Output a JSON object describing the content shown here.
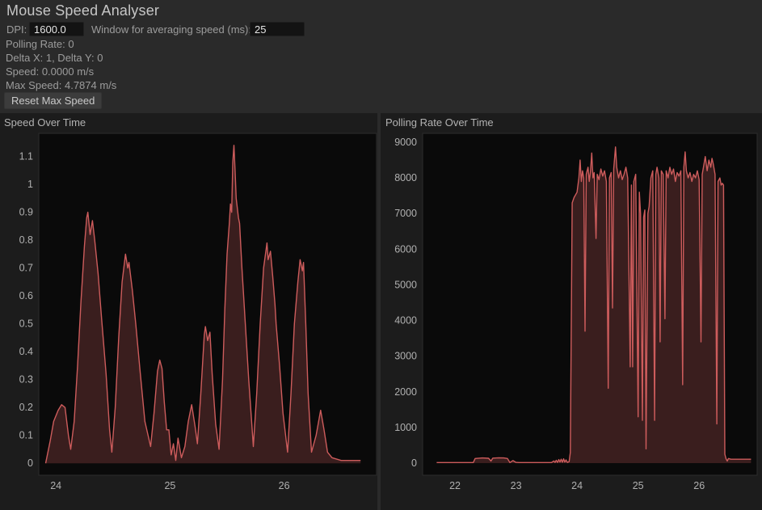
{
  "header": {
    "title": "Mouse Speed Analyser",
    "dpi_label": "DPI:",
    "dpi_value": "1600.0",
    "window_label": "Window for averaging speed (ms):",
    "window_value": "25",
    "polling_rate": "Polling Rate: 0",
    "delta": "Delta X: 1, Delta Y: 0",
    "speed": "Speed: 0.0000 m/s",
    "max_speed": "Max Speed: 4.7874 m/s",
    "reset_button": "Reset Max Speed"
  },
  "colors": {
    "page_bg": "#2a2a2a",
    "panel_bg": "#1c1c1c",
    "plot_bg": "#0a0a0a",
    "plot_border": "#2d2d2d",
    "line": "#cd5c5c",
    "fill": "rgba(205,92,92,0.25)",
    "tick_text": "#b0b0b0"
  },
  "chart_data": [
    {
      "type": "area",
      "title": "Speed Over Time",
      "xlabel": "",
      "ylabel": "",
      "grid": false,
      "legend": "none",
      "xlim": [
        23.85,
        26.81
      ],
      "ylim": [
        -0.043,
        1.183
      ],
      "xticks": [
        24,
        25,
        26
      ],
      "xtick_labels": [
        "24",
        "25",
        "26"
      ],
      "yticks": [
        0,
        0.1,
        0.2,
        0.3,
        0.4,
        0.5,
        0.6,
        0.7,
        0.8,
        0.9,
        1,
        1.1
      ],
      "ytick_labels": [
        "0",
        "0.1",
        "0.2",
        "0.3",
        "0.4",
        "0.5",
        "0.6",
        "0.7",
        "0.8",
        "0.9",
        "1",
        "1.1"
      ],
      "points": [
        [
          23.91,
          0.0
        ],
        [
          23.95,
          0.08
        ],
        [
          23.98,
          0.15
        ],
        [
          24.02,
          0.19
        ],
        [
          24.05,
          0.21
        ],
        [
          24.08,
          0.2
        ],
        [
          24.11,
          0.1
        ],
        [
          24.13,
          0.05
        ],
        [
          24.16,
          0.15
        ],
        [
          24.19,
          0.35
        ],
        [
          24.22,
          0.58
        ],
        [
          24.25,
          0.78
        ],
        [
          24.27,
          0.88
        ],
        [
          24.28,
          0.9
        ],
        [
          24.3,
          0.82
        ],
        [
          24.32,
          0.87
        ],
        [
          24.34,
          0.8
        ],
        [
          24.37,
          0.68
        ],
        [
          24.4,
          0.52
        ],
        [
          24.44,
          0.32
        ],
        [
          24.47,
          0.12
        ],
        [
          24.49,
          0.04
        ],
        [
          24.52,
          0.2
        ],
        [
          24.55,
          0.45
        ],
        [
          24.58,
          0.65
        ],
        [
          24.61,
          0.75
        ],
        [
          24.63,
          0.7
        ],
        [
          24.64,
          0.72
        ],
        [
          24.67,
          0.62
        ],
        [
          24.7,
          0.5
        ],
        [
          24.74,
          0.32
        ],
        [
          24.78,
          0.15
        ],
        [
          24.83,
          0.06
        ],
        [
          24.86,
          0.18
        ],
        [
          24.89,
          0.33
        ],
        [
          24.91,
          0.37
        ],
        [
          24.93,
          0.34
        ],
        [
          24.95,
          0.22
        ],
        [
          24.97,
          0.12
        ],
        [
          24.99,
          0.12
        ],
        [
          25.01,
          0.03
        ],
        [
          25.03,
          0.07
        ],
        [
          25.05,
          0.01
        ],
        [
          25.07,
          0.09
        ],
        [
          25.1,
          0.02
        ],
        [
          25.13,
          0.06
        ],
        [
          25.16,
          0.15
        ],
        [
          25.19,
          0.21
        ],
        [
          25.22,
          0.13
        ],
        [
          25.24,
          0.07
        ],
        [
          25.27,
          0.25
        ],
        [
          25.3,
          0.46
        ],
        [
          25.31,
          0.49
        ],
        [
          25.33,
          0.44
        ],
        [
          25.35,
          0.47
        ],
        [
          25.37,
          0.32
        ],
        [
          25.4,
          0.14
        ],
        [
          25.43,
          0.05
        ],
        [
          25.46,
          0.3
        ],
        [
          25.48,
          0.55
        ],
        [
          25.5,
          0.75
        ],
        [
          25.52,
          0.86
        ],
        [
          25.53,
          0.93
        ],
        [
          25.54,
          0.9
        ],
        [
          25.55,
          1.08
        ],
        [
          25.56,
          1.14
        ],
        [
          25.57,
          1.05
        ],
        [
          25.58,
          0.95
        ],
        [
          25.6,
          0.88
        ],
        [
          25.61,
          0.86
        ],
        [
          25.63,
          0.7
        ],
        [
          25.66,
          0.5
        ],
        [
          25.69,
          0.3
        ],
        [
          25.72,
          0.12
        ],
        [
          25.73,
          0.06
        ],
        [
          25.76,
          0.25
        ],
        [
          25.79,
          0.5
        ],
        [
          25.82,
          0.7
        ],
        [
          25.85,
          0.79
        ],
        [
          25.86,
          0.73
        ],
        [
          25.88,
          0.76
        ],
        [
          25.9,
          0.67
        ],
        [
          25.92,
          0.57
        ],
        [
          25.93,
          0.5
        ],
        [
          25.96,
          0.35
        ],
        [
          25.99,
          0.18
        ],
        [
          26.03,
          0.04
        ],
        [
          26.06,
          0.25
        ],
        [
          26.09,
          0.5
        ],
        [
          26.12,
          0.65
        ],
        [
          26.14,
          0.73
        ],
        [
          26.16,
          0.69
        ],
        [
          26.17,
          0.72
        ],
        [
          26.19,
          0.5
        ],
        [
          26.21,
          0.25
        ],
        [
          26.24,
          0.04
        ],
        [
          26.28,
          0.1
        ],
        [
          26.32,
          0.19
        ],
        [
          26.35,
          0.12
        ],
        [
          26.38,
          0.04
        ],
        [
          26.42,
          0.02
        ],
        [
          26.5,
          0.01
        ],
        [
          26.67,
          0.01
        ]
      ]
    },
    {
      "type": "area",
      "title": "Polling Rate Over Time",
      "xlabel": "",
      "ylabel": "",
      "grid": false,
      "legend": "none",
      "xlim": [
        21.47,
        26.95
      ],
      "ylim": [
        -340,
        9250
      ],
      "xticks": [
        22,
        23,
        24,
        25,
        26
      ],
      "xtick_labels": [
        "22",
        "23",
        "24",
        "25",
        "26"
      ],
      "yticks": [
        0,
        1000,
        2000,
        3000,
        4000,
        5000,
        6000,
        7000,
        8000,
        9000
      ],
      "ytick_labels": [
        "0",
        "1000",
        "2000",
        "3000",
        "4000",
        "5000",
        "6000",
        "7000",
        "8000",
        "9000"
      ],
      "points": [
        [
          21.7,
          15
        ],
        [
          22.3,
          15
        ],
        [
          22.33,
          130
        ],
        [
          22.45,
          145
        ],
        [
          22.55,
          135
        ],
        [
          22.59,
          60
        ],
        [
          22.62,
          140
        ],
        [
          22.72,
          150
        ],
        [
          22.8,
          145
        ],
        [
          22.86,
          130
        ],
        [
          22.9,
          15
        ],
        [
          22.95,
          70
        ],
        [
          23.0,
          20
        ],
        [
          23.05,
          15
        ],
        [
          23.58,
          15
        ],
        [
          23.62,
          60
        ],
        [
          23.64,
          20
        ],
        [
          23.66,
          80
        ],
        [
          23.68,
          20
        ],
        [
          23.7,
          100
        ],
        [
          23.72,
          30
        ],
        [
          23.74,
          110
        ],
        [
          23.76,
          25
        ],
        [
          23.78,
          120
        ],
        [
          23.8,
          30
        ],
        [
          23.82,
          90
        ],
        [
          23.84,
          20
        ],
        [
          23.87,
          40
        ],
        [
          23.89,
          300
        ],
        [
          23.92,
          7300
        ],
        [
          23.95,
          7450
        ],
        [
          24.0,
          7600
        ],
        [
          24.03,
          8000
        ],
        [
          24.05,
          8500
        ],
        [
          24.07,
          7900
        ],
        [
          24.09,
          8200
        ],
        [
          24.11,
          8000
        ],
        [
          24.13,
          3700
        ],
        [
          24.15,
          8100
        ],
        [
          24.18,
          8300
        ],
        [
          24.2,
          7900
        ],
        [
          24.22,
          8200
        ],
        [
          24.24,
          8700
        ],
        [
          24.26,
          8000
        ],
        [
          24.28,
          8150
        ],
        [
          24.31,
          6300
        ],
        [
          24.33,
          8100
        ],
        [
          24.36,
          7950
        ],
        [
          24.39,
          8250
        ],
        [
          24.42,
          8050
        ],
        [
          24.45,
          8200
        ],
        [
          24.48,
          7900
        ],
        [
          24.51,
          2100
        ],
        [
          24.53,
          8000
        ],
        [
          24.56,
          8150
        ],
        [
          24.58,
          4350
        ],
        [
          24.6,
          8250
        ],
        [
          24.63,
          8870
        ],
        [
          24.65,
          8300
        ],
        [
          24.68,
          8000
        ],
        [
          24.71,
          8200
        ],
        [
          24.74,
          7950
        ],
        [
          24.77,
          8100
        ],
        [
          24.8,
          8300
        ],
        [
          24.83,
          8000
        ],
        [
          24.87,
          2700
        ],
        [
          24.89,
          7800
        ],
        [
          24.91,
          2700
        ],
        [
          24.93,
          7900
        ],
        [
          24.96,
          8100
        ],
        [
          25.0,
          1300
        ],
        [
          25.02,
          7600
        ],
        [
          25.04,
          7000
        ],
        [
          25.07,
          1200
        ],
        [
          25.09,
          6900
        ],
        [
          25.11,
          7100
        ],
        [
          25.13,
          400
        ],
        [
          25.16,
          7000
        ],
        [
          25.18,
          7200
        ],
        [
          25.21,
          8000
        ],
        [
          25.24,
          8200
        ],
        [
          25.27,
          1200
        ],
        [
          25.29,
          8100
        ],
        [
          25.31,
          8300
        ],
        [
          25.34,
          8000
        ],
        [
          25.36,
          3400
        ],
        [
          25.38,
          8200
        ],
        [
          25.41,
          8100
        ],
        [
          25.44,
          4050
        ],
        [
          25.46,
          8200
        ],
        [
          25.49,
          8000
        ],
        [
          25.52,
          8300
        ],
        [
          25.55,
          8100
        ],
        [
          25.58,
          8250
        ],
        [
          25.61,
          7900
        ],
        [
          25.64,
          8150
        ],
        [
          25.67,
          8050
        ],
        [
          25.7,
          8200
        ],
        [
          25.73,
          2200
        ],
        [
          25.75,
          8300
        ],
        [
          25.77,
          8730
        ],
        [
          25.79,
          8200
        ],
        [
          25.82,
          8000
        ],
        [
          25.85,
          8150
        ],
        [
          25.88,
          7900
        ],
        [
          25.91,
          8100
        ],
        [
          25.94,
          8000
        ],
        [
          25.97,
          8200
        ],
        [
          26.0,
          7950
        ],
        [
          26.03,
          3400
        ],
        [
          26.05,
          8100
        ],
        [
          26.08,
          8400
        ],
        [
          26.1,
          8600
        ],
        [
          26.13,
          8200
        ],
        [
          26.16,
          8500
        ],
        [
          26.19,
          8300
        ],
        [
          26.21,
          8550
        ],
        [
          26.23,
          8400
        ],
        [
          26.26,
          8100
        ],
        [
          26.29,
          1100
        ],
        [
          26.31,
          7900
        ],
        [
          26.34,
          8000
        ],
        [
          26.36,
          7800
        ],
        [
          26.38,
          7850
        ],
        [
          26.4,
          7800
        ],
        [
          26.42,
          250
        ],
        [
          26.44,
          120
        ],
        [
          26.46,
          60
        ],
        [
          26.48,
          130
        ],
        [
          26.52,
          110
        ],
        [
          26.85,
          110
        ]
      ]
    }
  ]
}
